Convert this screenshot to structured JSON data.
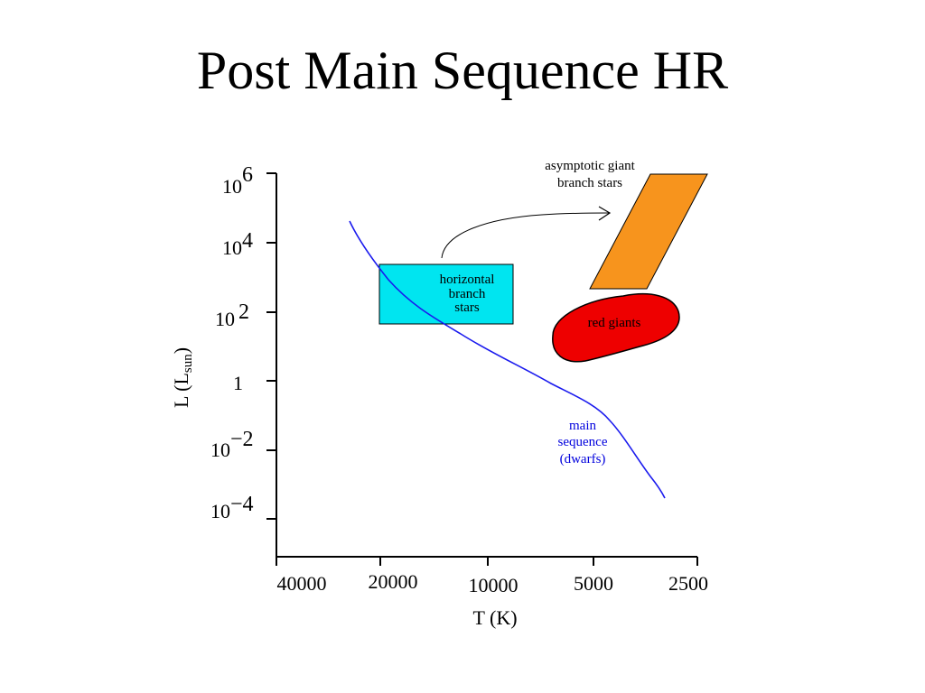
{
  "title": "Post Main Sequence HR",
  "axes": {
    "ylabel_main": "L (L",
    "ylabel_sub": "sun",
    "ylabel_close": ")",
    "xlabel": "T (K)",
    "y_ticks": [
      {
        "base": "10",
        "exp": "6"
      },
      {
        "base": "10",
        "exp": "4"
      },
      {
        "base": "10",
        "exp": "2"
      },
      {
        "base": "1",
        "exp": ""
      },
      {
        "base": "10",
        "exp": "−2"
      },
      {
        "base": "10",
        "exp": "−4"
      }
    ],
    "x_ticks": [
      "40000",
      "20000",
      "10000",
      "5000",
      "2500"
    ]
  },
  "regions": {
    "agb_line1": "asymptotic giant",
    "agb_line2": "branch stars",
    "hb_line1": "horizontal",
    "hb_line2": "branch",
    "hb_line3": "stars",
    "red_giants": "red giants",
    "ms_line1": "main",
    "ms_line2": "sequence",
    "ms_line3": "(dwarfs)"
  },
  "colors": {
    "main_sequence": "#1a1aee",
    "horizontal_branch": "#00e5ee",
    "red_giants": "#ee0000",
    "agb": "#f7941d"
  }
}
